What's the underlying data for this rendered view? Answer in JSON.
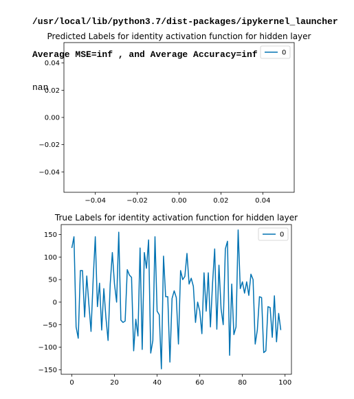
{
  "console": {
    "lines": [
      "/usr/local/lib/python3.7/dist-packages/ipykernel_launcher",
      "Average MSE=inf , and Average Accuracy=inf",
      "nan"
    ]
  },
  "colors": {
    "series": "#0072b2",
    "axes": "#000000",
    "background": "#ffffff"
  },
  "chart_data": [
    {
      "type": "line",
      "title": "Predicted Labels for identity activation function for hidden layer",
      "xlabel": "",
      "ylabel": "",
      "xlim": [
        -0.055,
        0.055
      ],
      "ylim": [
        -0.055,
        0.055
      ],
      "xticks": [
        -0.04,
        -0.02,
        0.0,
        0.02,
        0.04
      ],
      "xtick_labels": [
        "−0.04",
        "−0.02",
        "0.00",
        "0.02",
        "0.04"
      ],
      "yticks": [
        0.04,
        0.02,
        0.0,
        -0.02,
        -0.04
      ],
      "ytick_labels": [
        "0.04",
        "0.02",
        "0.00",
        "−0.02",
        "−0.04"
      ],
      "legend": {
        "position": "upper-right",
        "entries": [
          "0"
        ]
      },
      "series": [
        {
          "name": "0",
          "x": [],
          "y": []
        }
      ]
    },
    {
      "type": "line",
      "title": "True Labels for identity activation function for hidden layer",
      "xlabel": "",
      "ylabel": "",
      "xlim": [
        -5,
        103
      ],
      "ylim": [
        -160,
        172
      ],
      "xticks": [
        0,
        20,
        40,
        60,
        80,
        100
      ],
      "xtick_labels": [
        "0",
        "20",
        "40",
        "60",
        "80",
        "100"
      ],
      "yticks": [
        150,
        100,
        50,
        0,
        -50,
        -100,
        -150
      ],
      "ytick_labels": [
        "150",
        "100",
        "50",
        "0",
        "−50",
        "−100",
        "−150"
      ],
      "legend": {
        "position": "upper-right",
        "entries": [
          "0"
        ]
      },
      "series": [
        {
          "name": "0",
          "x": [
            0,
            1,
            2,
            3,
            4,
            5,
            6,
            7,
            8,
            9,
            10,
            11,
            12,
            13,
            14,
            15,
            16,
            17,
            18,
            19,
            20,
            21,
            22,
            23,
            24,
            25,
            26,
            27,
            28,
            29,
            30,
            31,
            32,
            33,
            34,
            35,
            36,
            37,
            38,
            39,
            40,
            41,
            42,
            43,
            44,
            45,
            46,
            47,
            48,
            49,
            50,
            51,
            52,
            53,
            54,
            55,
            56,
            57,
            58,
            59,
            60,
            61,
            62,
            63,
            64,
            65,
            66,
            67,
            68,
            69,
            70,
            71,
            72,
            73,
            74,
            75,
            76,
            77,
            78,
            79,
            80,
            81,
            82,
            83,
            84,
            85,
            86,
            87,
            88,
            89,
            90,
            91,
            92,
            93,
            94,
            95,
            96,
            97,
            98
          ],
          "y": [
            120,
            145,
            -55,
            -80,
            70,
            70,
            -33,
            58,
            -5,
            -65,
            50,
            145,
            -10,
            42,
            -62,
            30,
            -35,
            -85,
            40,
            110,
            40,
            0,
            155,
            -40,
            -45,
            -42,
            72,
            60,
            55,
            -108,
            -38,
            -75,
            120,
            -105,
            110,
            75,
            138,
            -113,
            -85,
            145,
            -20,
            -28,
            -148,
            102,
            12,
            12,
            -133,
            8,
            25,
            10,
            -93,
            70,
            50,
            57,
            108,
            40,
            53,
            35,
            -45,
            0,
            -20,
            -70,
            65,
            -20,
            65,
            -55,
            42,
            118,
            -60,
            82,
            -15,
            -50,
            118,
            135,
            -118,
            40,
            -72,
            -55,
            160,
            30,
            45,
            20,
            45,
            15,
            62,
            50,
            -93,
            -62,
            12,
            10,
            -112,
            -108,
            -10,
            -12,
            -78,
            14,
            -88,
            -25,
            -62
          ]
        }
      ]
    }
  ]
}
